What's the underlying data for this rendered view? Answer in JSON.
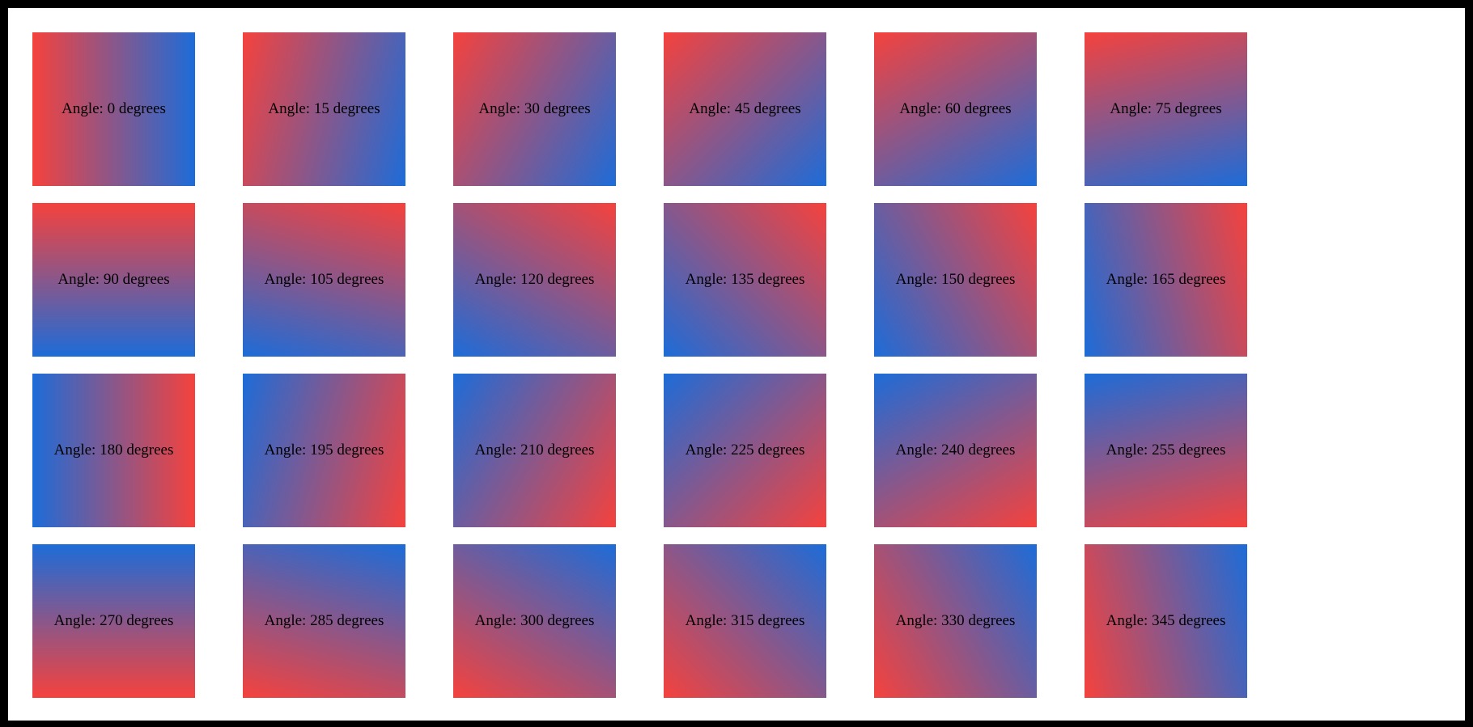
{
  "frame": {
    "border_color": "#000000",
    "background_color": "#ffffff"
  },
  "gradient": {
    "start_color": "#f5423d",
    "end_color": "#1d6cd8",
    "css_angle_offset": 90
  },
  "cells": [
    {
      "angle": 0,
      "label": "Angle: 0 degrees"
    },
    {
      "angle": 15,
      "label": "Angle: 15 degrees"
    },
    {
      "angle": 30,
      "label": "Angle: 30 degrees"
    },
    {
      "angle": 45,
      "label": "Angle: 45 degrees"
    },
    {
      "angle": 60,
      "label": "Angle: 60 degrees"
    },
    {
      "angle": 75,
      "label": "Angle: 75 degrees"
    },
    {
      "angle": 90,
      "label": "Angle: 90 degrees"
    },
    {
      "angle": 105,
      "label": "Angle: 105 degrees"
    },
    {
      "angle": 120,
      "label": "Angle: 120 degrees"
    },
    {
      "angle": 135,
      "label": "Angle: 135 degrees"
    },
    {
      "angle": 150,
      "label": "Angle: 150 degrees"
    },
    {
      "angle": 165,
      "label": "Angle: 165 degrees"
    },
    {
      "angle": 180,
      "label": "Angle: 180 degrees"
    },
    {
      "angle": 195,
      "label": "Angle: 195 degrees"
    },
    {
      "angle": 210,
      "label": "Angle: 210 degrees"
    },
    {
      "angle": 225,
      "label": "Angle: 225 degrees"
    },
    {
      "angle": 240,
      "label": "Angle: 240 degrees"
    },
    {
      "angle": 255,
      "label": "Angle: 255 degrees"
    },
    {
      "angle": 270,
      "label": "Angle: 270 degrees"
    },
    {
      "angle": 285,
      "label": "Angle: 285 degrees"
    },
    {
      "angle": 300,
      "label": "Angle: 300 degrees"
    },
    {
      "angle": 315,
      "label": "Angle: 315 degrees"
    },
    {
      "angle": 330,
      "label": "Angle: 330 degrees"
    },
    {
      "angle": 345,
      "label": "Angle: 345 degrees"
    }
  ]
}
